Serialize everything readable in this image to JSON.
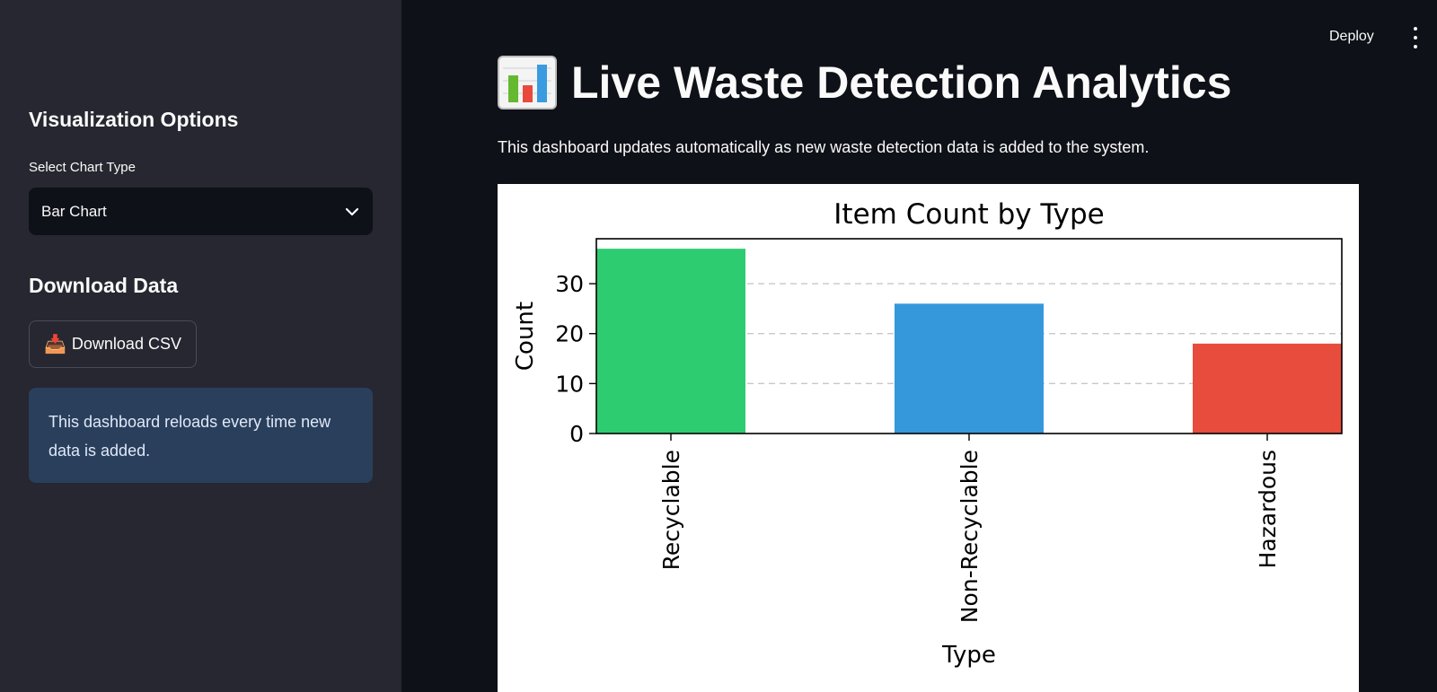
{
  "sidebar": {
    "viz_heading": "Visualization Options",
    "chart_type_label": "Select Chart Type",
    "chart_type_value": "Bar Chart",
    "download_heading": "Download Data",
    "download_icon": "📥",
    "download_label": "Download CSV",
    "info_text": "This dashboard reloads every time new data is added."
  },
  "header": {
    "deploy_label": "Deploy"
  },
  "main": {
    "title_icon": "bar-chart-icon",
    "title": "Live Waste Detection Analytics",
    "subtitle": "This dashboard updates automatically as new waste detection data is added to the system."
  },
  "colors": {
    "sidebar_bg": "#262730",
    "main_bg": "#0e1117",
    "info_bg": "#2a3f5c"
  },
  "chart_data": {
    "type": "bar",
    "title": "Item Count by Type",
    "xlabel": "Type",
    "ylabel": "Count",
    "categories": [
      "Recyclable",
      "Non-Recyclable",
      "Hazardous"
    ],
    "values": [
      37,
      26,
      18
    ],
    "colors": [
      "#2ecc71",
      "#3498db",
      "#e74c3c"
    ],
    "ylim": [
      0,
      39
    ],
    "yticks": [
      0,
      10,
      20,
      30
    ],
    "grid": "y-dashed",
    "legend": "none"
  }
}
